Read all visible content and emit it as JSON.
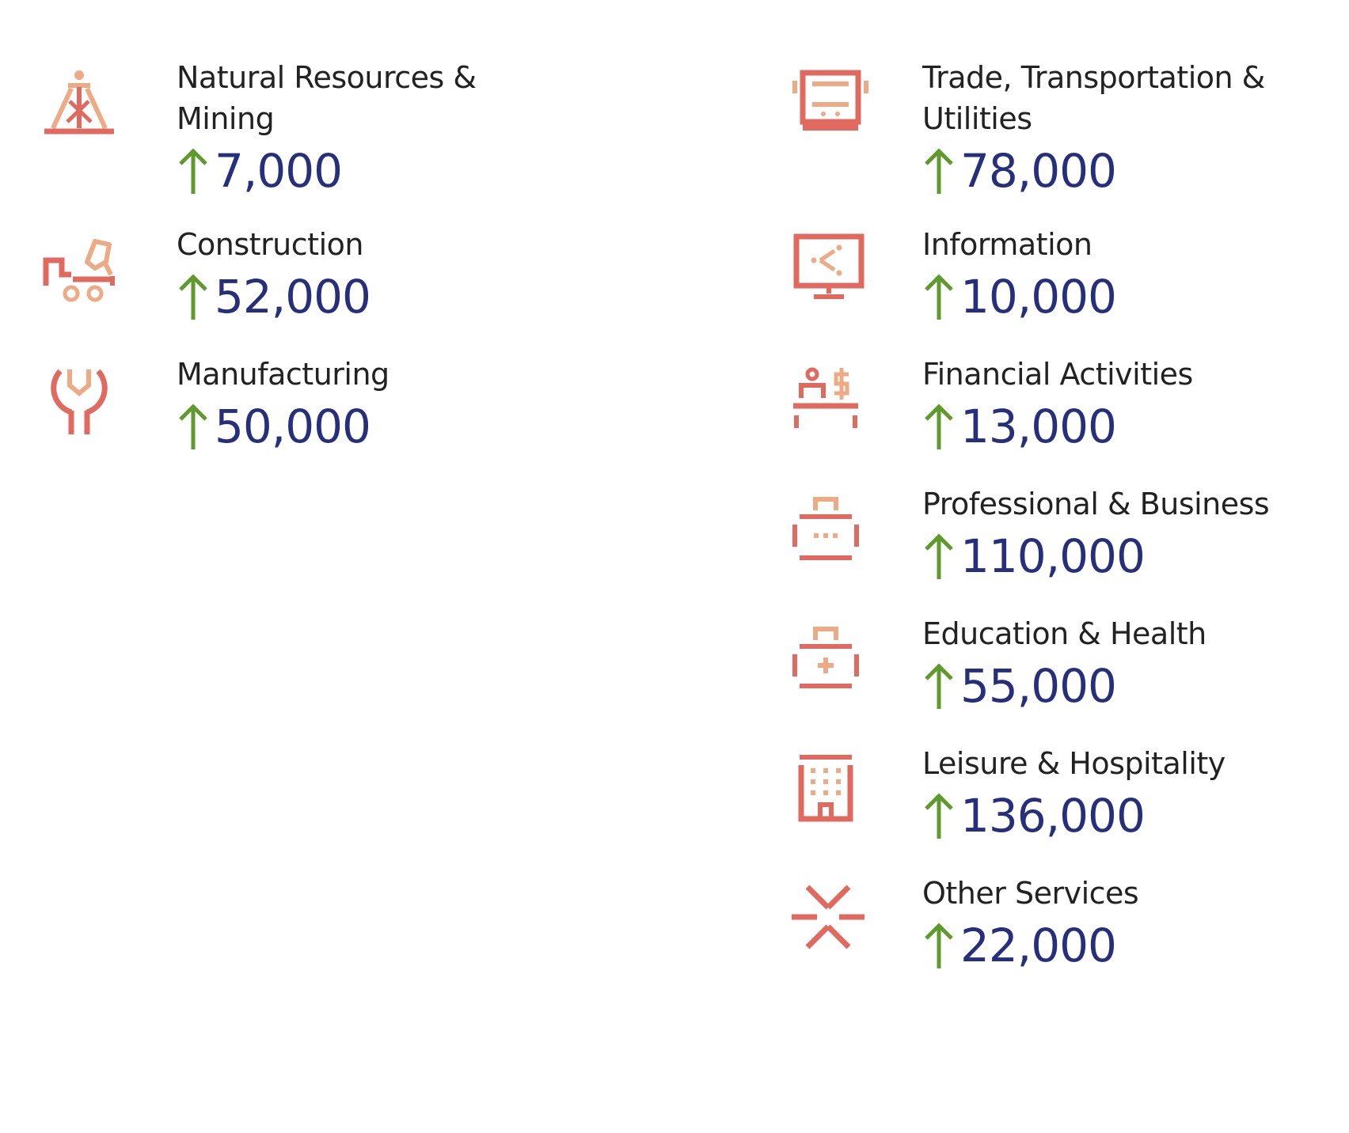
{
  "colors": {
    "icon_dark": "#e06a5f",
    "icon_light": "#eeaa85",
    "arrow": "#5e9a2c",
    "value": "#262f7c",
    "label": "#222222"
  },
  "left": [
    {
      "label_line1": "Natural Resources &",
      "label_line2": "Mining",
      "value": "7,000",
      "icon": "oil-derrick-icon",
      "direction": "up"
    },
    {
      "label_line1": "Construction",
      "value": "52,000",
      "icon": "excavator-icon",
      "direction": "up"
    },
    {
      "label_line1": "Manufacturing",
      "value": "50,000",
      "icon": "wrench-icon",
      "direction": "up"
    }
  ],
  "right": [
    {
      "label_line1": "Trade, Transportation &",
      "label_line2": "Utilities",
      "value": "78,000",
      "icon": "bus-icon",
      "direction": "up"
    },
    {
      "label_line1": "Information",
      "value": "10,000",
      "icon": "monitor-share-icon",
      "direction": "up"
    },
    {
      "label_line1": "Financial Activities",
      "value": "13,000",
      "icon": "bank-teller-icon",
      "direction": "up"
    },
    {
      "label_line1": "Professional & Business",
      "value": "110,000",
      "icon": "briefcase-icon",
      "direction": "up"
    },
    {
      "label_line1": "Education & Health",
      "value": "55,000",
      "icon": "medical-kit-icon",
      "direction": "up"
    },
    {
      "label_line1": "Leisure & Hospitality",
      "value": "136,000",
      "icon": "hotel-icon",
      "direction": "up"
    },
    {
      "label_line1": "Other Services",
      "value": "22,000",
      "icon": "tools-cross-icon",
      "direction": "up"
    }
  ]
}
